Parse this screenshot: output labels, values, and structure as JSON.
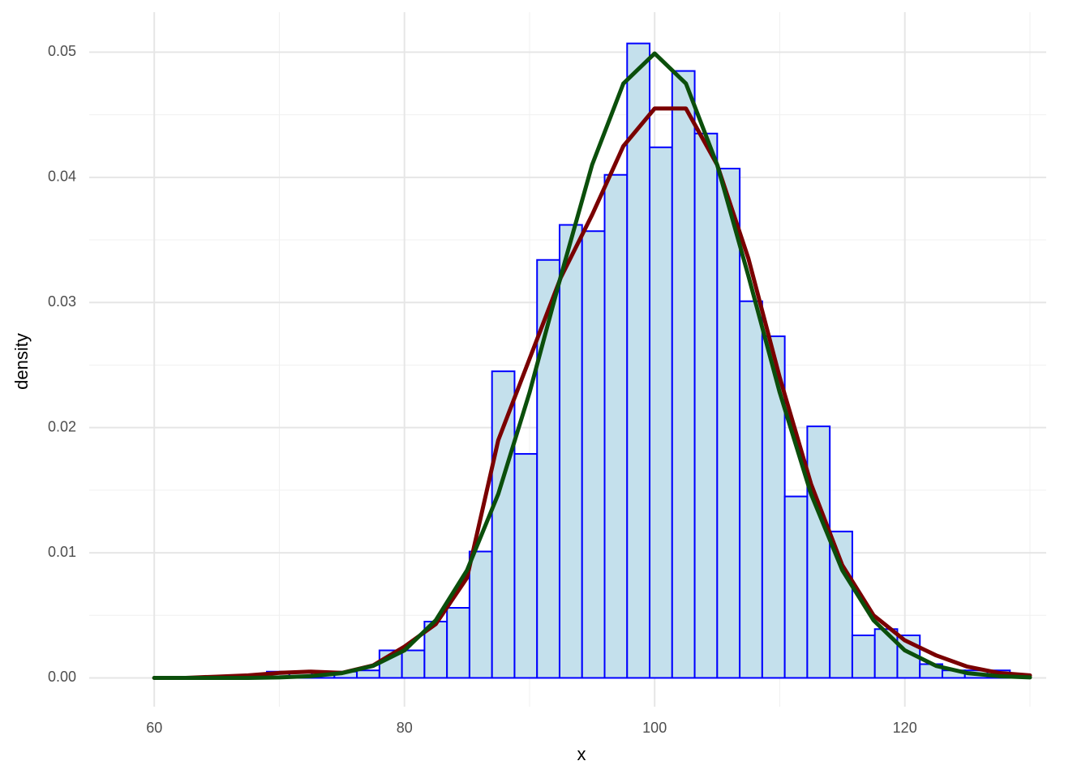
{
  "chart_data": {
    "type": "histogram",
    "x_label": "x",
    "y_label": "density",
    "bins": [
      58.2,
      60.0,
      61.8,
      63.6,
      65.4,
      67.2,
      69.0,
      70.8,
      72.6,
      74.4,
      76.2,
      78.0,
      79.8,
      81.6,
      83.4,
      85.2,
      87.0,
      88.8,
      90.6,
      92.4,
      94.2,
      96.0,
      97.8,
      99.6,
      101.4,
      103.2,
      105.0,
      106.8,
      108.6,
      110.4,
      112.2,
      114.0,
      115.8,
      117.6,
      119.4,
      121.2,
      123.0,
      124.8,
      126.6,
      128.4
    ],
    "values": [
      0,
      0,
      0,
      0,
      0,
      0,
      0.0005,
      0.0005,
      0.0005,
      0.0005,
      0.0006,
      0.0022,
      0.0022,
      0.0045,
      0.0056,
      0.0101,
      0.0245,
      0.0179,
      0.0334,
      0.0362,
      0.0357,
      0.0402,
      0.0507,
      0.0424,
      0.0485,
      0.0435,
      0.0407,
      0.0301,
      0.0273,
      0.0145,
      0.0201,
      0.0117,
      0.0034,
      0.0039,
      0.0034,
      0.0011,
      0.0006,
      0.0006,
      0.0006
    ],
    "fill": "#c4e0ec",
    "edge_color": "#0000ff",
    "series": [
      {
        "color": "#7a0000",
        "x": [
          60,
          62.5,
          65,
          67.5,
          70,
          72.5,
          75,
          77.5,
          80,
          82.5,
          85,
          87.5,
          90,
          92.5,
          95,
          97.5,
          100,
          102.5,
          105,
          107.5,
          110,
          112.5,
          115,
          117.5,
          120,
          122.5,
          125,
          127.5,
          130
        ],
        "values": [
          0,
          0,
          0.0001,
          0.0002,
          0.0004,
          0.0005,
          0.0004,
          0.001,
          0.0025,
          0.0043,
          0.008,
          0.019,
          0.0255,
          0.032,
          0.037,
          0.0425,
          0.0455,
          0.0455,
          0.041,
          0.0335,
          0.024,
          0.0155,
          0.009,
          0.005,
          0.003,
          0.0018,
          0.0009,
          0.0004,
          0.0002
        ]
      },
      {
        "color": "#0b4f0b",
        "x": [
          60,
          62.5,
          65,
          67.5,
          70,
          72.5,
          75,
          77.5,
          80,
          82.5,
          85,
          87.5,
          90,
          92.5,
          95,
          97.5,
          100,
          102.5,
          105,
          107.5,
          110,
          112.5,
          115,
          117.5,
          120,
          122.5,
          125,
          127.5,
          130
        ],
        "values": [
          0,
          0,
          0,
          0,
          4e-05,
          0.00014,
          0.00038,
          0.00096,
          0.0022,
          0.0046,
          0.0086,
          0.0147,
          0.0228,
          0.0321,
          0.041,
          0.0475,
          0.0499,
          0.0475,
          0.041,
          0.0321,
          0.0228,
          0.0147,
          0.0086,
          0.0046,
          0.0022,
          0.00096,
          0.00038,
          0.00014,
          4e-05
        ]
      }
    ],
    "xlim": [
      54.8,
      131.3
    ],
    "ylim": [
      -0.0023,
      0.0532
    ],
    "xticks": [
      60,
      80,
      100,
      120
    ],
    "yticks": [
      {
        "value": 0,
        "label": "0.00"
      },
      0.01,
      0.02,
      0.03,
      0.04,
      0.05
    ],
    "x_minor_ticks": [
      70,
      90,
      110,
      130
    ],
    "y_minor_ticks": [
      0.005,
      0.015,
      0.025,
      0.035,
      0.045
    ],
    "grid": true
  }
}
